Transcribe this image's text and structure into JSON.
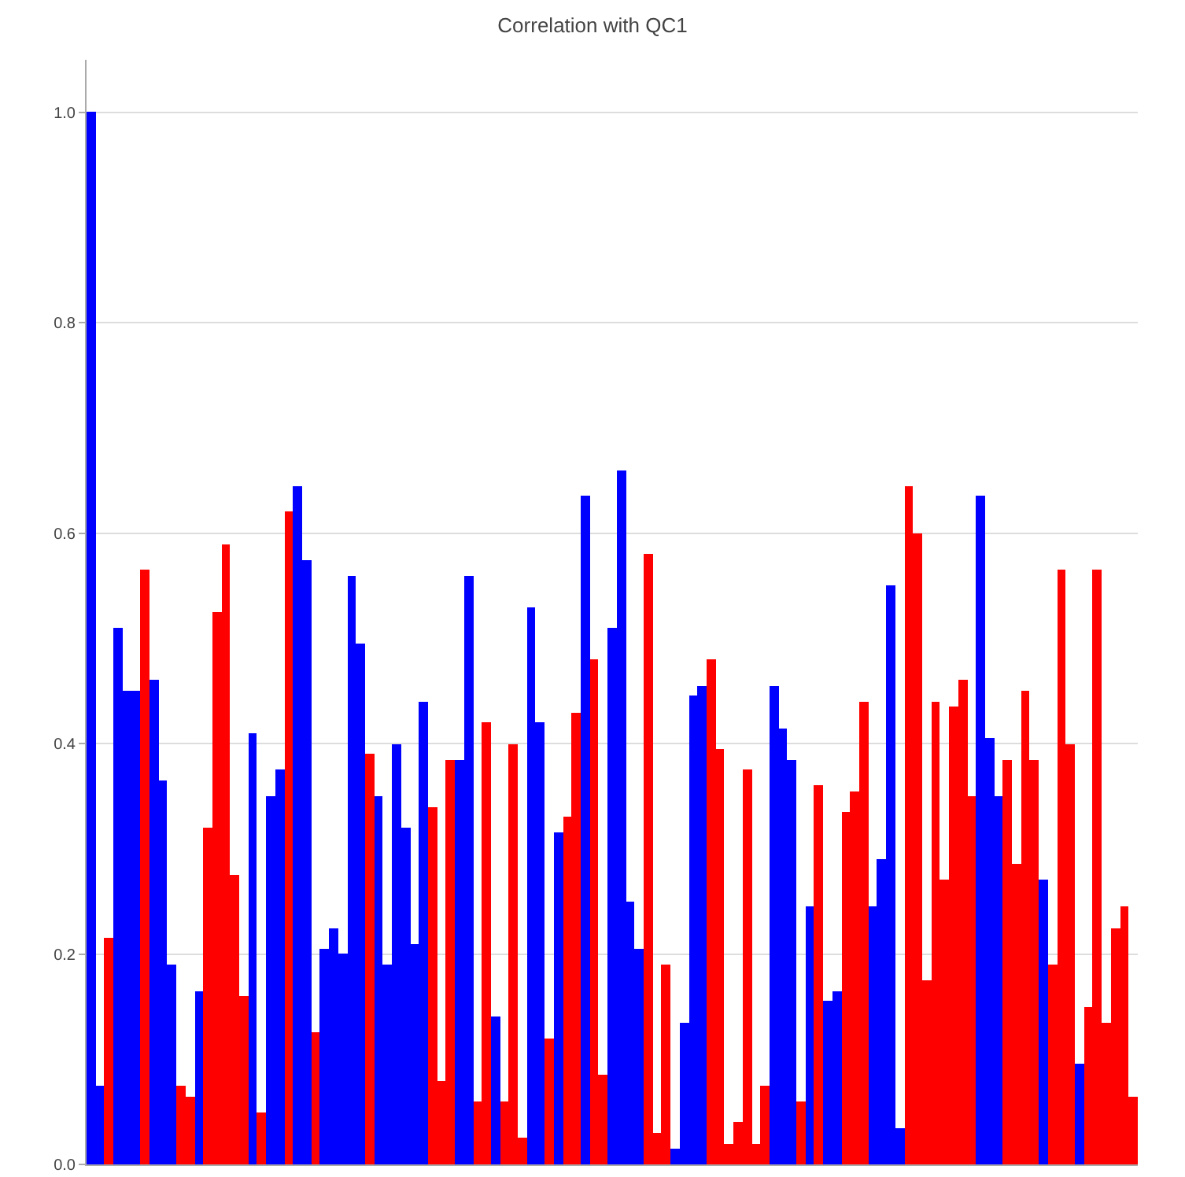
{
  "chart_data": {
    "type": "bar",
    "title": "Correlation with QC1",
    "values": [
      1.0,
      0.075,
      0.215,
      0.51,
      0.45,
      0.45,
      0.565,
      0.46,
      0.365,
      0.19,
      0.075,
      0.065,
      0.165,
      0.32,
      0.525,
      0.59,
      0.275,
      0.16,
      0.41,
      0.05,
      0.35,
      0.375,
      0.62,
      0.645,
      0.575,
      0.125,
      0.205,
      0.225,
      0.2,
      0.56,
      0.495,
      0.39,
      0.35,
      0.19,
      0.4,
      0.32,
      0.21,
      0.44,
      0.34,
      0.08,
      0.385,
      0.385,
      0.56,
      0.06,
      0.42,
      0.14,
      0.06,
      0.4,
      0.025,
      0.53,
      0.42,
      0.12,
      0.315,
      0.33,
      0.43,
      0.635,
      0.48,
      0.085,
      0.51,
      0.66,
      0.25,
      0.205,
      0.58,
      0.03,
      0.19,
      0.015,
      0.135,
      0.445,
      0.455,
      0.48,
      0.395,
      0.02,
      0.04,
      0.375,
      0.02,
      0.075,
      0.455,
      0.415,
      0.385,
      0.06,
      0.245,
      0.36,
      0.155,
      0.165,
      0.335,
      0.355,
      0.44,
      0.245,
      0.29,
      0.55,
      0.035,
      0.645,
      0.6,
      0.175,
      0.44,
      0.27,
      0.435,
      0.46,
      0.35,
      0.635,
      0.405,
      0.35,
      0.385,
      0.285,
      0.45,
      0.385,
      0.27,
      0.19,
      0.565,
      0.4,
      0.095,
      0.15,
      0.565,
      0.135,
      0.225,
      0.245,
      0.065
    ],
    "colors": [
      "#0000ff",
      "#0000ff",
      "#ff0000",
      "#0000ff",
      "#0000ff",
      "#0000ff",
      "#ff0000",
      "#0000ff",
      "#0000ff",
      "#0000ff",
      "#ff0000",
      "#ff0000",
      "#0000ff",
      "#ff0000",
      "#ff0000",
      "#ff0000",
      "#ff0000",
      "#ff0000",
      "#0000ff",
      "#ff0000",
      "#0000ff",
      "#0000ff",
      "#ff0000",
      "#0000ff",
      "#0000ff",
      "#ff0000",
      "#0000ff",
      "#0000ff",
      "#0000ff",
      "#0000ff",
      "#0000ff",
      "#ff0000",
      "#0000ff",
      "#0000ff",
      "#0000ff",
      "#0000ff",
      "#0000ff",
      "#0000ff",
      "#ff0000",
      "#ff0000",
      "#ff0000",
      "#0000ff",
      "#0000ff",
      "#ff0000",
      "#ff0000",
      "#0000ff",
      "#ff0000",
      "#ff0000",
      "#ff0000",
      "#0000ff",
      "#0000ff",
      "#ff0000",
      "#0000ff",
      "#ff0000",
      "#ff0000",
      "#0000ff",
      "#ff0000",
      "#ff0000",
      "#0000ff",
      "#0000ff",
      "#0000ff",
      "#0000ff",
      "#ff0000",
      "#ff0000",
      "#ff0000",
      "#0000ff",
      "#0000ff",
      "#0000ff",
      "#0000ff",
      "#ff0000",
      "#ff0000",
      "#ff0000",
      "#ff0000",
      "#ff0000",
      "#ff0000",
      "#ff0000",
      "#0000ff",
      "#0000ff",
      "#0000ff",
      "#ff0000",
      "#0000ff",
      "#ff0000",
      "#0000ff",
      "#0000ff",
      "#ff0000",
      "#ff0000",
      "#ff0000",
      "#0000ff",
      "#0000ff",
      "#0000ff",
      "#0000ff",
      "#ff0000",
      "#ff0000",
      "#ff0000",
      "#ff0000",
      "#ff0000",
      "#ff0000",
      "#ff0000",
      "#ff0000",
      "#0000ff",
      "#0000ff",
      "#0000ff",
      "#ff0000",
      "#ff0000",
      "#ff0000",
      "#ff0000",
      "#0000ff",
      "#ff0000",
      "#ff0000",
      "#ff0000",
      "#0000ff",
      "#ff0000",
      "#ff0000",
      "#ff0000",
      "#ff0000",
      "#ff0000",
      "#ff0000"
    ],
    "categories": [
      null,
      null,
      null,
      null,
      null,
      null,
      null,
      null,
      null,
      null,
      null,
      null,
      null,
      null,
      null,
      null,
      null,
      null,
      null,
      null,
      null,
      null,
      null,
      null,
      null,
      null,
      null,
      null,
      null,
      null,
      null,
      null,
      null,
      null,
      null,
      null,
      null,
      null,
      null,
      null,
      null,
      null,
      null,
      null,
      null,
      null,
      null,
      null,
      null,
      null,
      null,
      null,
      null,
      null,
      null,
      null,
      null,
      null,
      null,
      null,
      null,
      null,
      null,
      null,
      null,
      null,
      null,
      null,
      null,
      null,
      null,
      null,
      null,
      null,
      null,
      null,
      null,
      null,
      null,
      null,
      null,
      null,
      null,
      null,
      null,
      null,
      null,
      null,
      null,
      null,
      null,
      null,
      null,
      null,
      null,
      null,
      null,
      null,
      null,
      null,
      null,
      null,
      null,
      null,
      null,
      null,
      null,
      null,
      null,
      null,
      null,
      null,
      null,
      null,
      null,
      null,
      null
    ],
    "ylim": [
      0,
      1.05
    ],
    "yticks": [
      {
        "value": 0,
        "label": "0.0"
      },
      {
        "value": 0.2,
        "label": "0.2"
      },
      {
        "value": 0.4,
        "label": "0.4"
      },
      {
        "value": 0.6,
        "label": "0.6"
      },
      {
        "value": 0.8,
        "label": "0.8"
      },
      {
        "value": 1,
        "label": "1.0"
      }
    ],
    "grid": "y",
    "tick_labels": "y"
  }
}
